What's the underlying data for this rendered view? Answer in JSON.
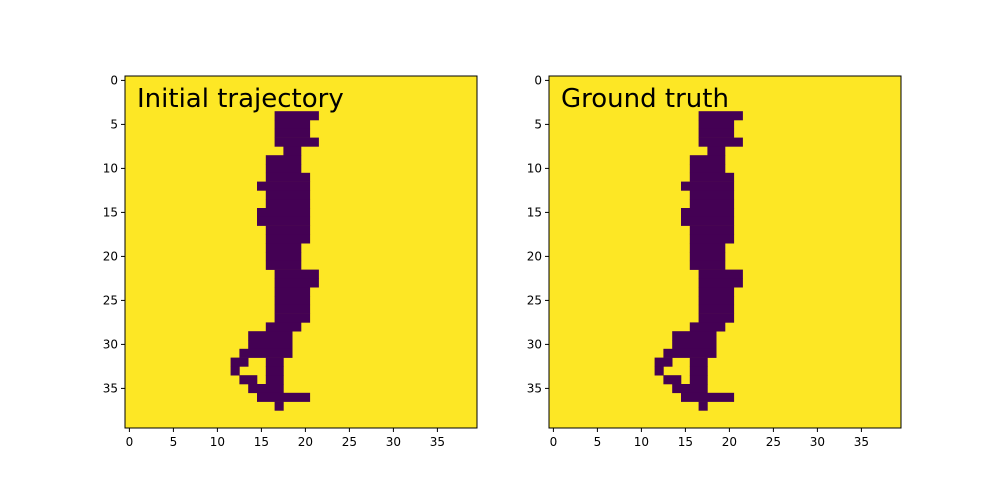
{
  "figure": {
    "background_color": "#ffffff",
    "empty_color": "#fde725",
    "filled_color": "#440154"
  },
  "chart_data": [
    {
      "type": "heatmap",
      "title": "Initial trajectory",
      "xlabel": "",
      "ylabel": "",
      "xlim": [
        -0.5,
        39.5
      ],
      "ylim": [
        39.5,
        -0.5
      ],
      "grid": false,
      "xticks": [
        0,
        5,
        10,
        15,
        20,
        25,
        30,
        35
      ],
      "yticks": [
        0,
        5,
        10,
        15,
        20,
        25,
        30,
        35
      ],
      "grid_size": [
        40,
        40
      ],
      "background_value": 1,
      "filled_value": 0,
      "filled_runs": [
        [
          4,
          17,
          21
        ],
        [
          5,
          17,
          20
        ],
        [
          6,
          17,
          20
        ],
        [
          7,
          17,
          21
        ],
        [
          8,
          18,
          19
        ],
        [
          9,
          16,
          19
        ],
        [
          10,
          16,
          19
        ],
        [
          11,
          16,
          20
        ],
        [
          12,
          15,
          20
        ],
        [
          13,
          16,
          20
        ],
        [
          14,
          16,
          20
        ],
        [
          15,
          15,
          20
        ],
        [
          16,
          15,
          20
        ],
        [
          17,
          16,
          20
        ],
        [
          18,
          16,
          20
        ],
        [
          19,
          16,
          19
        ],
        [
          20,
          16,
          19
        ],
        [
          21,
          16,
          19
        ],
        [
          22,
          17,
          21
        ],
        [
          23,
          17,
          21
        ],
        [
          24,
          17,
          20
        ],
        [
          25,
          17,
          20
        ],
        [
          26,
          17,
          20
        ],
        [
          27,
          17,
          20
        ],
        [
          28,
          16,
          19
        ],
        [
          29,
          14,
          18
        ],
        [
          30,
          14,
          18
        ],
        [
          31,
          13,
          18
        ],
        [
          32,
          12,
          13
        ],
        [
          32,
          16,
          17
        ],
        [
          33,
          12,
          12
        ],
        [
          33,
          16,
          17
        ],
        [
          34,
          13,
          14
        ],
        [
          34,
          16,
          17
        ],
        [
          35,
          14,
          17
        ],
        [
          36,
          15,
          20
        ],
        [
          37,
          17,
          17
        ]
      ]
    },
    {
      "type": "heatmap",
      "title": "Ground truth",
      "xlabel": "",
      "ylabel": "",
      "xlim": [
        -0.5,
        39.5
      ],
      "ylim": [
        39.5,
        -0.5
      ],
      "grid": false,
      "xticks": [
        0,
        5,
        10,
        15,
        20,
        25,
        30,
        35
      ],
      "yticks": [
        0,
        5,
        10,
        15,
        20,
        25,
        30,
        35
      ],
      "grid_size": [
        40,
        40
      ],
      "background_value": 1,
      "filled_value": 0,
      "filled_runs": [
        [
          4,
          17,
          21
        ],
        [
          5,
          17,
          20
        ],
        [
          6,
          17,
          20
        ],
        [
          7,
          17,
          21
        ],
        [
          8,
          18,
          19
        ],
        [
          9,
          16,
          19
        ],
        [
          10,
          16,
          19
        ],
        [
          11,
          16,
          20
        ],
        [
          12,
          15,
          20
        ],
        [
          13,
          16,
          20
        ],
        [
          14,
          16,
          20
        ],
        [
          15,
          15,
          20
        ],
        [
          16,
          15,
          20
        ],
        [
          17,
          16,
          20
        ],
        [
          18,
          16,
          20
        ],
        [
          19,
          16,
          19
        ],
        [
          20,
          16,
          19
        ],
        [
          21,
          16,
          19
        ],
        [
          22,
          17,
          21
        ],
        [
          23,
          17,
          21
        ],
        [
          24,
          17,
          20
        ],
        [
          25,
          17,
          20
        ],
        [
          26,
          17,
          20
        ],
        [
          27,
          17,
          20
        ],
        [
          28,
          16,
          19
        ],
        [
          29,
          14,
          18
        ],
        [
          30,
          14,
          18
        ],
        [
          31,
          13,
          18
        ],
        [
          32,
          12,
          13
        ],
        [
          32,
          16,
          17
        ],
        [
          33,
          12,
          12
        ],
        [
          33,
          16,
          17
        ],
        [
          34,
          13,
          14
        ],
        [
          34,
          16,
          17
        ],
        [
          35,
          14,
          17
        ],
        [
          36,
          15,
          20
        ],
        [
          37,
          17,
          17
        ]
      ]
    }
  ]
}
